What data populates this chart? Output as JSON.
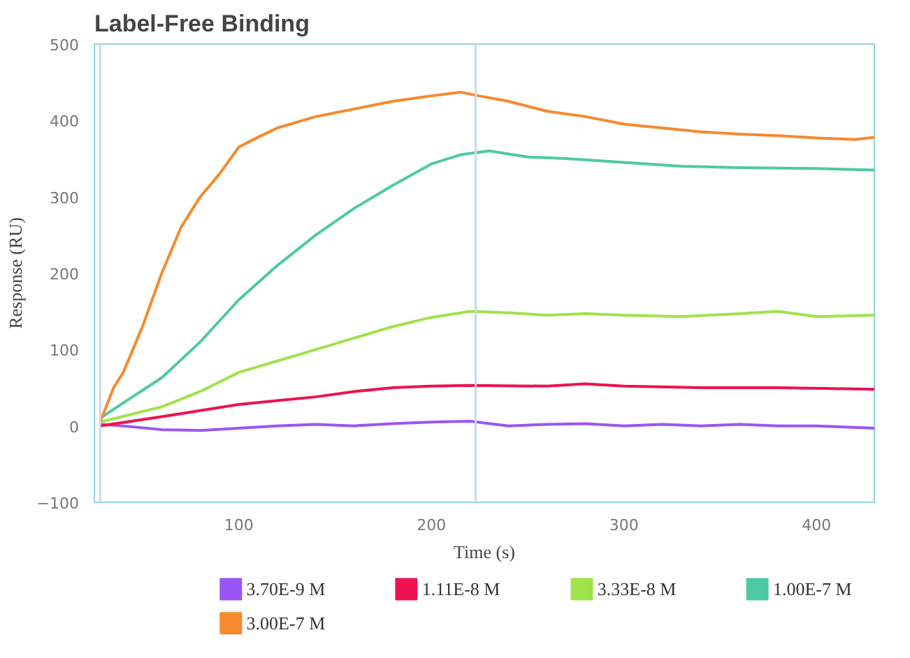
{
  "chart_data": {
    "type": "line",
    "title": "Label-Free Binding",
    "xlabel": "Time (s)",
    "ylabel": "Response (RU)",
    "xlim": [
      25,
      430
    ],
    "xticks": [
      100,
      200,
      300,
      400
    ],
    "ylim": [
      -100,
      500
    ],
    "yticks": [
      -100,
      0,
      100,
      200,
      300,
      400,
      500
    ],
    "grid": false,
    "legend": "bottom",
    "marker": "none",
    "line_style": "solid",
    "ref_lines": [
      {
        "axis": "x",
        "value": 28,
        "color": "#c9d9e6"
      },
      {
        "axis": "x",
        "value": 223,
        "color": "#c9d9e6"
      }
    ],
    "series": [
      {
        "name": "3.70E-9 M",
        "color": "#9b55f5",
        "x": [
          28,
          40,
          60,
          80,
          100,
          120,
          140,
          160,
          180,
          200,
          220,
          240,
          260,
          280,
          300,
          320,
          340,
          360,
          380,
          400,
          430
        ],
        "values": [
          2,
          0,
          -5,
          -6,
          -3,
          0,
          2,
          0,
          3,
          5,
          6,
          0,
          2,
          3,
          0,
          2,
          0,
          2,
          0,
          0,
          -3
        ]
      },
      {
        "name": "1.11E-8 M",
        "color": "#ee1250",
        "x": [
          28,
          60,
          80,
          100,
          120,
          140,
          160,
          180,
          200,
          220,
          260,
          280,
          300,
          340,
          380,
          430
        ],
        "values": [
          0,
          12,
          20,
          28,
          33,
          38,
          45,
          50,
          52,
          53,
          52,
          55,
          52,
          50,
          50,
          48
        ]
      },
      {
        "name": "3.33E-8 M",
        "color": "#9fe24a",
        "x": [
          28,
          60,
          80,
          100,
          120,
          140,
          160,
          180,
          200,
          220,
          240,
          260,
          280,
          300,
          330,
          360,
          380,
          400,
          430
        ],
        "values": [
          5,
          25,
          45,
          70,
          85,
          100,
          115,
          130,
          142,
          150,
          148,
          145,
          147,
          145,
          143,
          147,
          150,
          143,
          145
        ]
      },
      {
        "name": "1.00E-7 M",
        "color": "#4fc9a4",
        "x": [
          28,
          40,
          60,
          80,
          100,
          120,
          140,
          160,
          180,
          200,
          215,
          230,
          250,
          270,
          300,
          330,
          360,
          400,
          430
        ],
        "values": [
          10,
          30,
          63,
          110,
          165,
          210,
          250,
          285,
          315,
          343,
          355,
          360,
          352,
          350,
          345,
          340,
          338,
          337,
          335
        ]
      },
      {
        "name": "3.00E-7 M",
        "color": "#f58a2e",
        "x": [
          28,
          35,
          40,
          50,
          60,
          70,
          80,
          90,
          100,
          110,
          120,
          140,
          160,
          180,
          200,
          215,
          225,
          240,
          260,
          280,
          300,
          320,
          340,
          360,
          380,
          400,
          420,
          430
        ],
        "values": [
          5,
          50,
          70,
          130,
          200,
          260,
          300,
          330,
          365,
          378,
          390,
          405,
          415,
          425,
          432,
          437,
          432,
          425,
          412,
          405,
          395,
          390,
          385,
          382,
          380,
          377,
          375,
          378
        ]
      }
    ]
  }
}
